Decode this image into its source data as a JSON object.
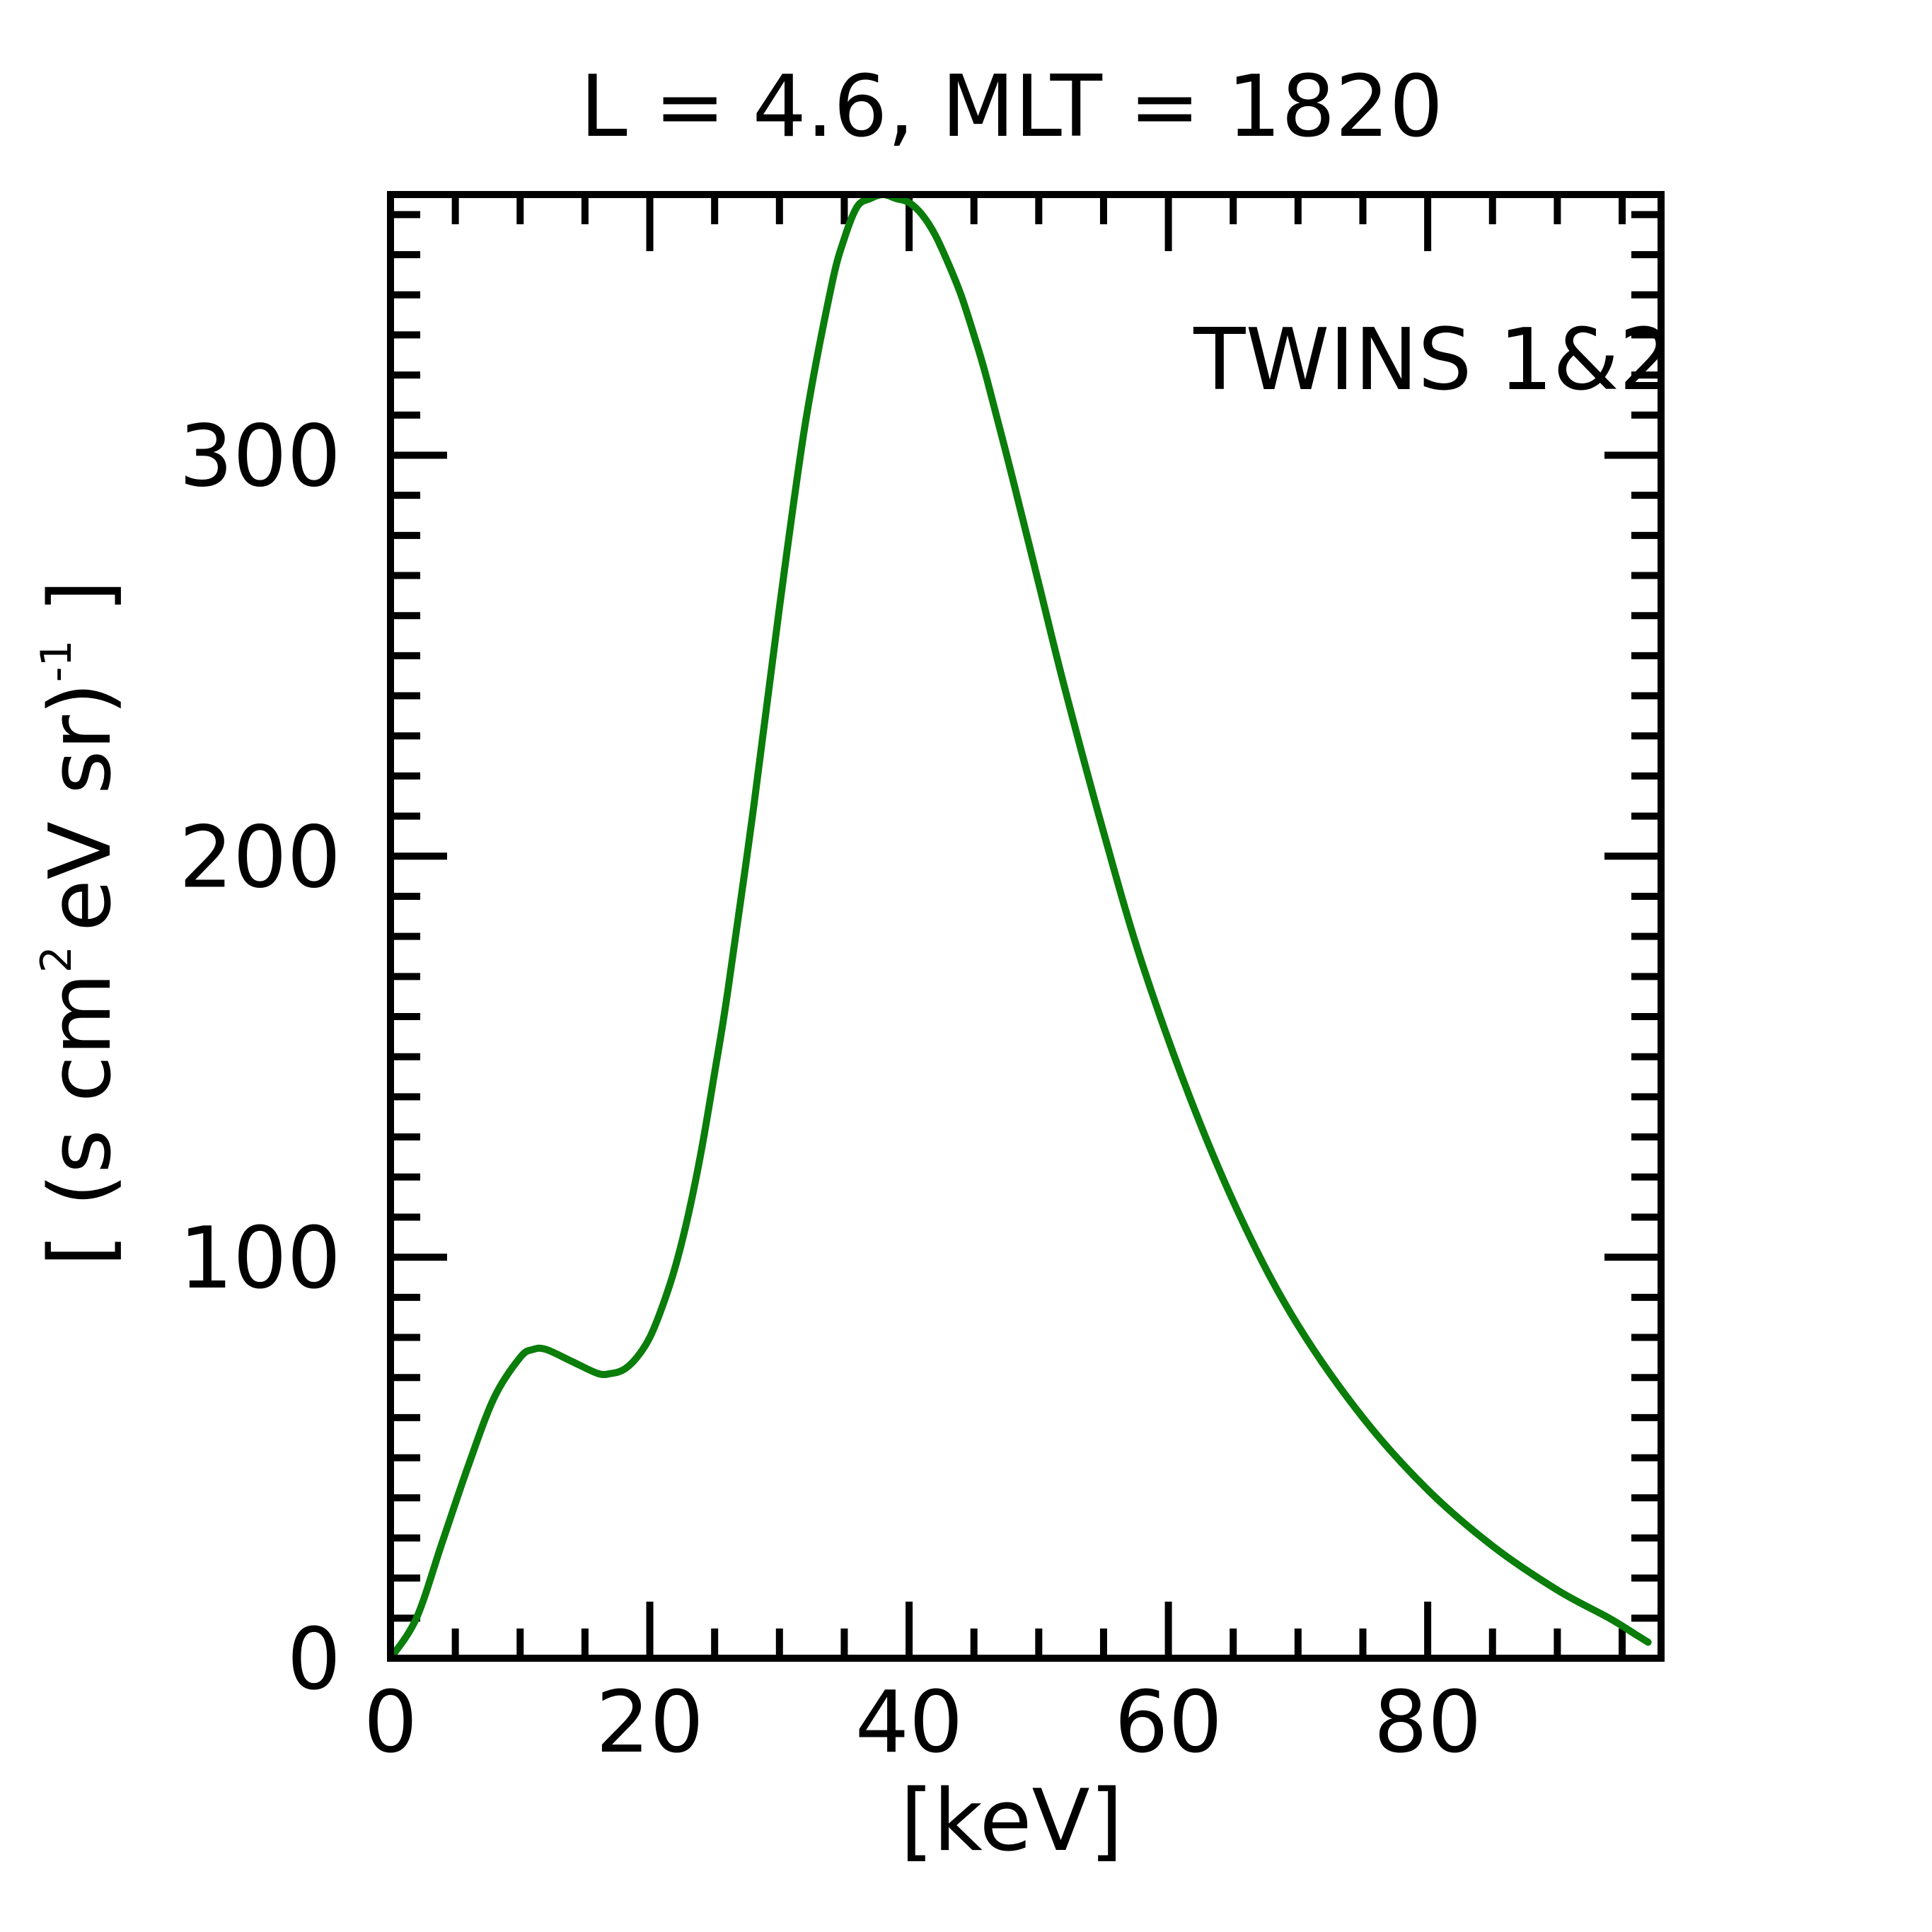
{
  "chart_data": {
    "type": "line",
    "title": "L =  4.6, MLT = 1820",
    "xlabel": "[keV]",
    "ylabel": "[ (s cm",
    "ylabel_sup1": "2",
    "ylabel_mid": "eV sr)",
    "ylabel_sup2": "-1",
    "ylabel_end": " ]",
    "xlim": [
      0,
      98
    ],
    "ylim": [
      0,
      365
    ],
    "xticks": [
      0,
      20,
      40,
      60,
      80
    ],
    "yticks": [
      0,
      100,
      200,
      300
    ],
    "xtick_labels": [
      "0",
      "20",
      "40",
      "60",
      "80"
    ],
    "ytick_labels": [
      "0",
      "100",
      "200",
      "300"
    ],
    "x_minor_step": 5,
    "y_minor_step": 10,
    "grid": false,
    "legend": {
      "position": "top-right"
    },
    "series": [
      {
        "name": "TWINS 1&2",
        "color": "#0a7d0a",
        "x": [
          0,
          2,
          4,
          6,
          8,
          10,
          11,
          12,
          14,
          16,
          17,
          18,
          19,
          20,
          21,
          22,
          23,
          24,
          25,
          26,
          28,
          30,
          32,
          34,
          35,
          36,
          37,
          38,
          39,
          40,
          41,
          42,
          43,
          44,
          45,
          46,
          48,
          50,
          52,
          55,
          58,
          62,
          66,
          70,
          75,
          80,
          85,
          90,
          94,
          96,
          97
        ],
        "y": [
          0,
          10,
          29,
          48,
          65,
          75,
          77,
          77,
          74,
          71,
          71,
          72,
          75,
          80,
          88,
          98,
          111,
          127,
          146,
          166,
          212,
          262,
          308,
          342,
          354,
          362,
          364,
          365,
          364,
          363,
          360,
          355,
          348,
          340,
          330,
          319,
          294,
          268,
          242,
          206,
          173,
          137,
          107,
          83,
          60,
          42,
          28,
          17,
          10,
          6,
          4
        ]
      }
    ]
  }
}
